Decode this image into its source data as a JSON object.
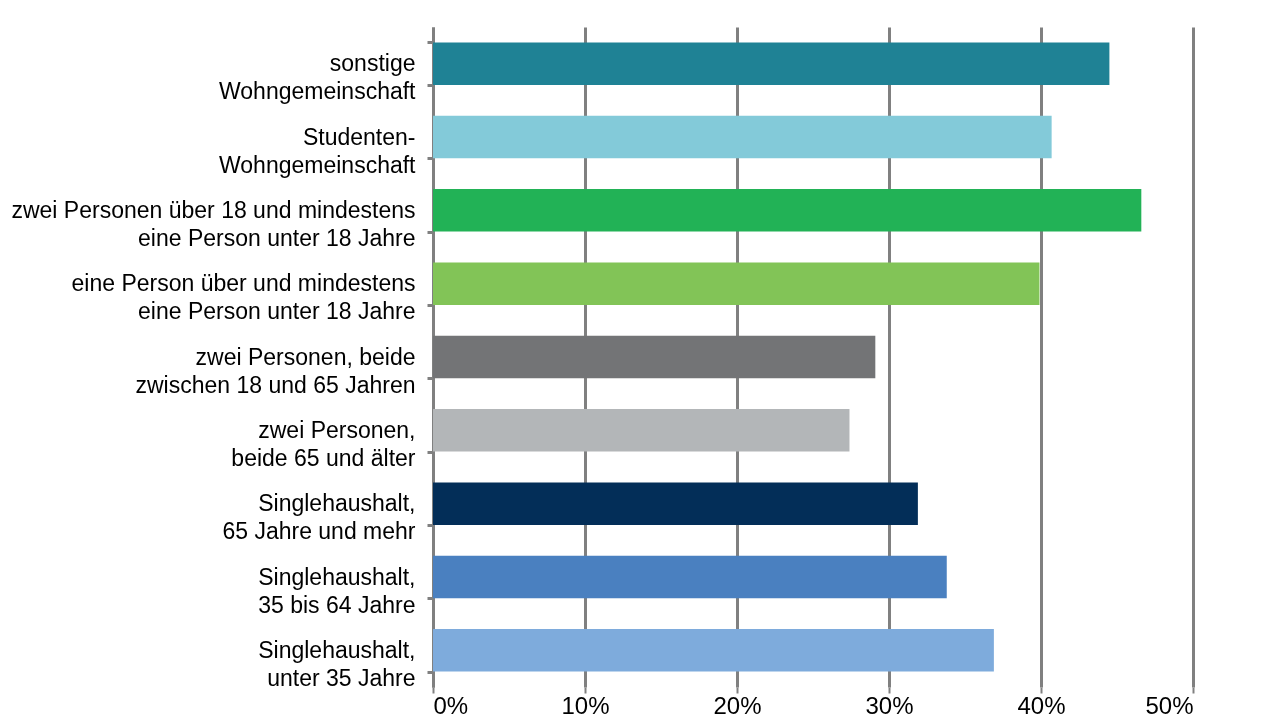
{
  "chart_data": {
    "type": "bar",
    "orientation": "horizontal",
    "categories": [
      "sonstige\nWohngemeinschaft",
      "Studenten-\nWohngemeinschaft",
      "zwei Personen über 18 und mindestens\neine Person unter 18 Jahre",
      "eine Person über und mindestens\neine Person unter 18 Jahre",
      "zwei Personen, beide\nzwischen 18 und 65 Jahren",
      "zwei Personen,\nbeide 65 und älter",
      "Singlehaushalt,\n65 Jahre und mehr",
      "Singlehaushalt,\n35 bis 64 Jahre",
      "Singlehaushalt,\nunter 35 Jahre"
    ],
    "values": [
      44.5,
      40.7,
      46.6,
      39.9,
      29.1,
      27.4,
      31.9,
      33.8,
      36.9
    ],
    "colors": [
      "#1f8295",
      "#83cad9",
      "#22b256",
      "#82c457",
      "#737476",
      "#b3b6b8",
      "#032e58",
      "#4a80c0",
      "#7eabdc"
    ],
    "xlim": [
      0,
      50
    ],
    "xticks": [
      {
        "value": 0,
        "label": "0%"
      },
      {
        "value": 10,
        "label": "10%"
      },
      {
        "value": 20,
        "label": "20%"
      },
      {
        "value": 30,
        "label": "30%"
      },
      {
        "value": 40,
        "label": "40%"
      },
      {
        "value": 50,
        "label": "50%"
      }
    ],
    "grid": "x"
  }
}
